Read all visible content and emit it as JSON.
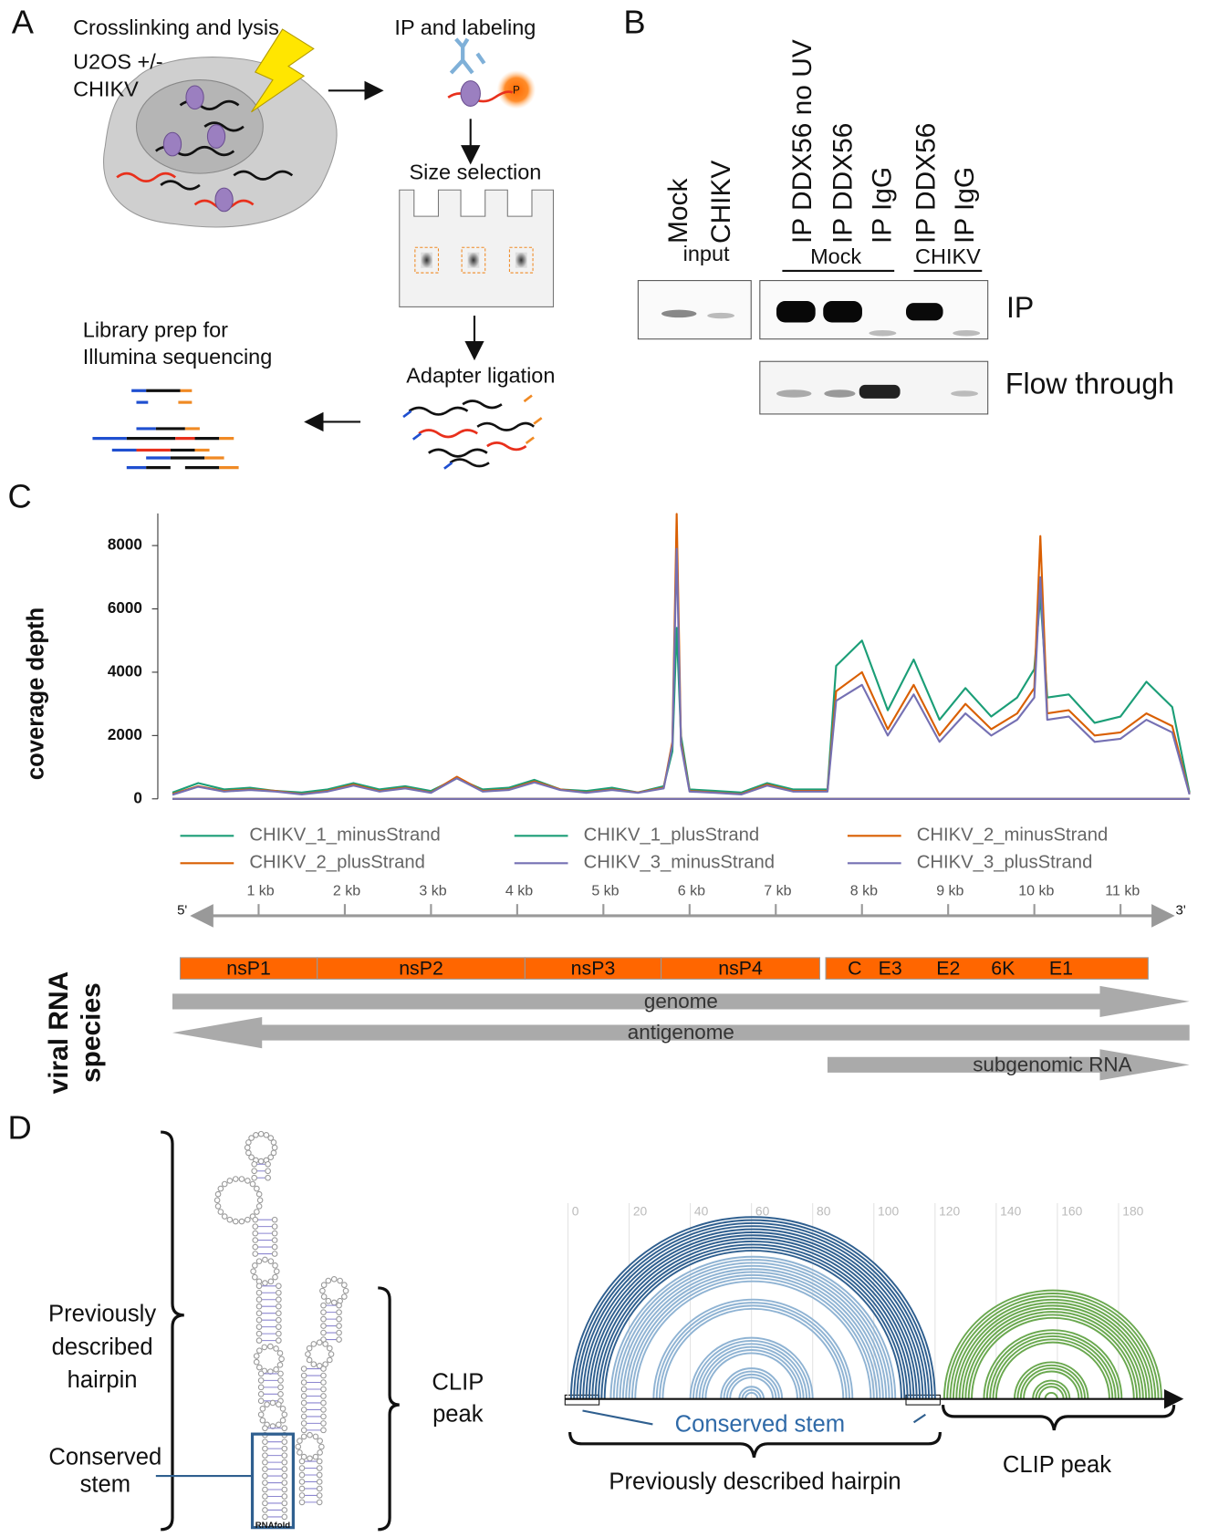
{
  "panel_a": {
    "label": "A",
    "lysis": "Crosslinking and lysis",
    "cells": "U2OS +/-",
    "virus": "CHIKV",
    "ip": "IP and labeling",
    "phosphate": "P",
    "size": "Size selection",
    "adapter": "Adapter ligation",
    "library": [
      "Library prep for",
      "Illumina sequencing"
    ]
  },
  "panel_b": {
    "label": "B",
    "lanes": [
      "Mock",
      "CHIKV",
      "IP DDX56 no UV",
      "IP DDX56",
      "IP IgG",
      "IP DDX56",
      "IP IgG"
    ],
    "input": "input",
    "groups": [
      "Mock",
      "CHIKV"
    ],
    "rows": [
      "IP",
      "Flow through"
    ]
  },
  "chart_data": {
    "type": "line",
    "panel_label": "C",
    "y_label": "coverage depth",
    "x": [
      0,
      0.3,
      0.6,
      0.9,
      1.2,
      1.5,
      1.8,
      2.1,
      2.4,
      2.7,
      3.0,
      3.3,
      3.6,
      3.9,
      4.2,
      4.5,
      4.8,
      5.1,
      5.4,
      5.7,
      5.8,
      5.85,
      5.9,
      6.0,
      6.3,
      6.6,
      6.9,
      7.2,
      7.5,
      7.6,
      7.7,
      8.0,
      8.3,
      8.6,
      8.9,
      9.2,
      9.5,
      9.8,
      10.0,
      10.07,
      10.15,
      10.4,
      10.7,
      11.0,
      11.3,
      11.6,
      11.8
    ],
    "xlim": [
      0,
      11.8
    ],
    "xticks": [
      {
        "value": 1,
        "label": "1 kb"
      },
      {
        "value": 2,
        "label": "2 kb"
      },
      {
        "value": 3,
        "label": "3 kb"
      },
      {
        "value": 4,
        "label": "4 kb"
      },
      {
        "value": 5,
        "label": "5 kb"
      },
      {
        "value": 6,
        "label": "6 kb"
      },
      {
        "value": 7,
        "label": "7 kb"
      },
      {
        "value": 8,
        "label": "8 kb"
      },
      {
        "value": 9,
        "label": "9  kb"
      },
      {
        "value": 10,
        "label": "10 kb"
      },
      {
        "value": 11,
        "label": "11 kb"
      }
    ],
    "ylim": [
      0,
      9000
    ],
    "yticks": [
      0,
      2000,
      4000,
      6000,
      8000
    ],
    "legend": "bottom",
    "series": [
      {
        "name": "CHIKV_1_minusStrand",
        "color": "#1b9e77",
        "values": [
          200,
          500,
          300,
          350,
          250,
          200,
          300,
          500,
          300,
          400,
          250,
          650,
          300,
          350,
          600,
          300,
          250,
          350,
          200,
          400,
          1500,
          5400,
          2000,
          300,
          250,
          200,
          500,
          300,
          300,
          300,
          4200,
          5000,
          2800,
          4400,
          2500,
          3500,
          2600,
          3200,
          4100,
          6400,
          3200,
          3300,
          2400,
          2600,
          3700,
          2900,
          200
        ]
      },
      {
        "name": "CHIKV_1_plusStrand",
        "color": "#1b9e77",
        "values": [
          0,
          0,
          0,
          0,
          0,
          0,
          0,
          0,
          0,
          0,
          0,
          0,
          0,
          0,
          0,
          0,
          0,
          0,
          0,
          0,
          0,
          0,
          0,
          0,
          0,
          0,
          0,
          0,
          0,
          0,
          0,
          0,
          0,
          0,
          0,
          0,
          0,
          0,
          0,
          0,
          0,
          0,
          0,
          0,
          0,
          0,
          0
        ]
      },
      {
        "name": "CHIKV_2_minusStrand",
        "color": "#d95f02",
        "values": [
          150,
          400,
          250,
          300,
          250,
          150,
          250,
          450,
          250,
          350,
          200,
          700,
          250,
          300,
          550,
          300,
          200,
          300,
          200,
          350,
          1800,
          9000,
          1800,
          250,
          200,
          150,
          450,
          250,
          250,
          250,
          3400,
          4000,
          2200,
          3600,
          2000,
          3000,
          2200,
          2700,
          3500,
          8300,
          2700,
          2800,
          2000,
          2100,
          2700,
          2300,
          150
        ]
      },
      {
        "name": "CHIKV_2_plusStrand",
        "color": "#d95f02",
        "values": [
          0,
          0,
          0,
          0,
          0,
          0,
          0,
          0,
          0,
          0,
          0,
          0,
          0,
          0,
          0,
          0,
          0,
          0,
          0,
          0,
          0,
          0,
          0,
          0,
          0,
          0,
          0,
          0,
          0,
          0,
          0,
          0,
          0,
          0,
          0,
          0,
          0,
          0,
          0,
          0,
          0,
          0,
          0,
          0,
          0,
          0,
          0
        ]
      },
      {
        "name": "CHIKV_3_minusStrand",
        "color": "#7570b3",
        "values": [
          130,
          380,
          230,
          280,
          230,
          140,
          230,
          420,
          230,
          330,
          190,
          650,
          230,
          280,
          520,
          280,
          190,
          280,
          190,
          330,
          1700,
          7900,
          1700,
          230,
          190,
          140,
          420,
          230,
          230,
          230,
          3100,
          3600,
          2000,
          3300,
          1800,
          2700,
          2000,
          2500,
          3200,
          7000,
          2500,
          2600,
          1800,
          1900,
          2500,
          2100,
          140
        ]
      },
      {
        "name": "CHIKV_3_plusStrand",
        "color": "#7570b3",
        "values": [
          0,
          0,
          0,
          0,
          0,
          0,
          0,
          0,
          0,
          0,
          0,
          0,
          0,
          0,
          0,
          0,
          0,
          0,
          0,
          0,
          0,
          0,
          0,
          0,
          0,
          0,
          0,
          0,
          0,
          0,
          0,
          0,
          0,
          0,
          0,
          0,
          0,
          0,
          0,
          0,
          0,
          0,
          0,
          0,
          0,
          0,
          0
        ]
      }
    ]
  },
  "genome_map": {
    "five_prime": "5'",
    "three_prime": "3'",
    "color": "#ff6600",
    "genes": [
      {
        "name": "nsP1",
        "start": 0.09,
        "end": 1.68
      },
      {
        "name": "nsP2",
        "start": 1.68,
        "end": 4.09
      },
      {
        "name": "nsP3",
        "start": 4.09,
        "end": 5.67
      },
      {
        "name": "nsP4",
        "start": 5.67,
        "end": 7.51
      }
    ],
    "structural": {
      "start": 7.58,
      "end": 11.32,
      "labels": [
        "C",
        "E3",
        "E2",
        "6K",
        "E1"
      ]
    },
    "species_label": [
      "viral RNA",
      "species"
    ],
    "rna_species": [
      {
        "name": "genome",
        "start": 0,
        "end": 11.8,
        "direction": "forward"
      },
      {
        "name": "antigenome",
        "start": 0,
        "end": 11.8,
        "direction": "reverse"
      },
      {
        "name": "subgenomic RNA",
        "start": 7.6,
        "end": 11.8,
        "direction": "forward"
      }
    ]
  },
  "panel_d": {
    "label": "D",
    "left_hairpin": [
      "Previously",
      "described",
      "hairpin"
    ],
    "left_stem": [
      "Conserved",
      "stem"
    ],
    "left_clip": [
      "CLIP",
      "peak"
    ],
    "rnafold": "RNAfold",
    "arc_lim": [
      0,
      200
    ],
    "arc_ticks": [
      0,
      20,
      40,
      60,
      80,
      100,
      120,
      140,
      160,
      180
    ],
    "helices": [
      {
        "start": 1,
        "end": 120,
        "pairs": 12,
        "color": "#2f5f8f"
      },
      {
        "start": 14,
        "end": 107,
        "pairs": 9,
        "color": "#8fb3d3"
      },
      {
        "start": 28,
        "end": 93,
        "pairs": 4,
        "color": "#8fb3d3"
      },
      {
        "start": 40,
        "end": 80,
        "pairs": 6,
        "color": "#8fb3d3"
      },
      {
        "start": 50,
        "end": 70,
        "pairs": 4,
        "color": "#8fb3d3"
      },
      {
        "start": 56,
        "end": 64,
        "pairs": 3,
        "color": "#8fb3d3"
      },
      {
        "start": 123,
        "end": 194,
        "pairs": 10,
        "color": "#6aa84f"
      },
      {
        "start": 136,
        "end": 181,
        "pairs": 5,
        "color": "#6aa84f"
      },
      {
        "start": 146,
        "end": 170,
        "pairs": 4,
        "color": "#6aa84f"
      },
      {
        "start": 152,
        "end": 164,
        "pairs": 3,
        "color": "#6aa84f"
      },
      {
        "start": 156,
        "end": 160,
        "pairs": 1,
        "color": "#6aa84f"
      }
    ],
    "conserved_stem": "Conserved stem",
    "hairpin": "Previously described hairpin",
    "clip": "CLIP peak"
  }
}
